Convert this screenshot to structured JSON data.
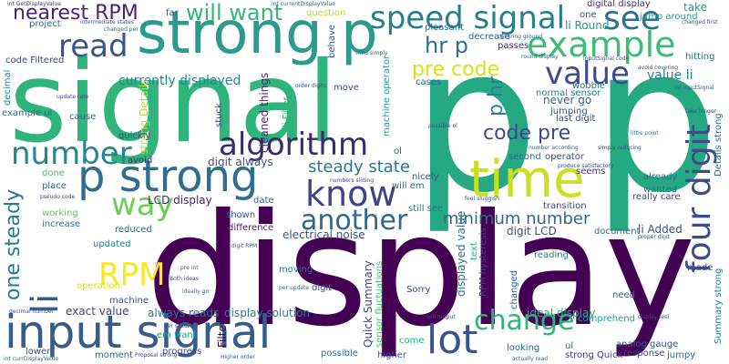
{
  "palette": {
    "dark_purple": "#440154",
    "indigo": "#46327e",
    "blue": "#365c8d",
    "teal_blue": "#277f8e",
    "teal": "#1fa187",
    "green": "#4ac16d",
    "light_green": "#a0da39",
    "yellow": "#d8e219",
    "bright_yellow": "#fde725"
  },
  "words": [
    {
      "text": "display",
      "color": "#440154"
    },
    {
      "text": "signal",
      "color": "#2fb47c"
    },
    {
      "text": "p p",
      "color": "#25a982"
    },
    {
      "text": "strong p",
      "color": "#2d9b8a"
    },
    {
      "text": "time",
      "color": "#c8e020"
    },
    {
      "text": "input signal",
      "color": "#365c8d"
    },
    {
      "text": "p strong",
      "color": "#2e6e8e"
    },
    {
      "text": "algorithm",
      "color": "#3b2a6e"
    },
    {
      "text": "example",
      "color": "#3dbc74"
    },
    {
      "text": "speed signal",
      "color": "#277f8e"
    },
    {
      "text": "see",
      "color": "#2e6e8e"
    },
    {
      "text": "read",
      "color": "#3b528b"
    },
    {
      "text": "know",
      "color": "#404387"
    },
    {
      "text": "another",
      "color": "#30688e"
    },
    {
      "text": "number",
      "color": "#24868e"
    },
    {
      "text": "way",
      "color": "#6ccd5a"
    },
    {
      "text": "value",
      "color": "#3e4a89"
    },
    {
      "text": "change",
      "color": "#2fb47c"
    },
    {
      "text": "RPM",
      "color": "#365c8d"
    },
    {
      "text": "lot",
      "color": "#fde725"
    },
    {
      "text": "li",
      "color": "#3b528b"
    },
    {
      "text": "four digit",
      "color": "#3e4a89"
    },
    {
      "text": "one steady",
      "color": "#2a788e"
    },
    {
      "text": "nearest RPM",
      "color": "#482475"
    },
    {
      "text": "will want",
      "color": "#35b779"
    },
    {
      "text": "pre code",
      "color": "#d8e219"
    },
    {
      "text": "code pre",
      "color": "#3e4989"
    },
    {
      "text": "hr p",
      "color": "#2e6e8e"
    },
    {
      "text": "p hr",
      "color": "#25858e"
    },
    {
      "text": "steady state",
      "color": "#2a788e"
    },
    {
      "text": "minimum number",
      "color": "#31688e"
    },
    {
      "text": "currently displayed",
      "color": "#228c8d"
    },
    {
      "text": "digital display",
      "color": "#46327e"
    },
    {
      "text": "take",
      "color": "#1f9e89"
    },
    {
      "text": "li Round",
      "color": "#1f9e89"
    },
    {
      "text": "value li",
      "color": "#277f8e"
    },
    {
      "text": "digit always",
      "color": "#3b528b"
    },
    {
      "text": "LCD display",
      "color": "#482475"
    },
    {
      "text": "Filtered Signal",
      "color": "#440154"
    },
    {
      "text": "Quick Summary",
      "color": "#3e4a89"
    },
    {
      "text": "displayed value",
      "color": "#2c728e"
    },
    {
      "text": "RPM hysteresis",
      "color": "#443a83"
    },
    {
      "text": "ideal display",
      "color": "#27ad81"
    },
    {
      "text": "analog gauge",
      "color": "#3b528b"
    },
    {
      "text": "exact value",
      "color": "#414487"
    },
    {
      "text": "always reads",
      "color": "#2c728e"
    },
    {
      "text": "display solution",
      "color": "#27808e"
    },
    {
      "text": "electrical noise",
      "color": "#3b528b"
    },
    {
      "text": "Details strong",
      "color": "#2f6c8e"
    },
    {
      "text": "Summary strong",
      "color": "#25838e"
    },
    {
      "text": "strong Details",
      "color": "#c2df23"
    },
    {
      "text": "cleaned things",
      "color": "#482878"
    },
    {
      "text": "li Filter",
      "color": "#2fb47c"
    },
    {
      "text": "machine operator",
      "color": "#1fa088"
    },
    {
      "text": "sensor fluctuations",
      "color": "#4ac16d"
    },
    {
      "text": "digit LCD",
      "color": "#3b528b"
    },
    {
      "text": "li Added",
      "color": "#3e4a89"
    },
    {
      "text": "jump around",
      "color": "#1fa188"
    },
    {
      "text": "pleasant",
      "color": "#31688e"
    },
    {
      "text": "decrease",
      "color": "#31688e"
    },
    {
      "text": "passes",
      "color": "#46327e"
    },
    {
      "text": "behave",
      "color": "#38588c"
    },
    {
      "text": "question",
      "color": "#b5de2b"
    },
    {
      "text": "project",
      "color": "#2e6e8e"
    },
    {
      "text": "code Filtered",
      "color": "#414487"
    },
    {
      "text": "decimal",
      "color": "#24868e"
    },
    {
      "text": "example ul",
      "color": "#2d708e"
    },
    {
      "text": "cause",
      "color": "#31688e"
    },
    {
      "text": "quickly",
      "color": "#3e4a89"
    },
    {
      "text": "avoid",
      "color": "#482475"
    },
    {
      "text": "done",
      "color": "#4ac16d"
    },
    {
      "text": "place",
      "color": "#32648e"
    },
    {
      "text": "working",
      "color": "#5ec962"
    },
    {
      "text": "increase",
      "color": "#2c728e"
    },
    {
      "text": "reduced",
      "color": "#31688e"
    },
    {
      "text": "updated",
      "color": "#25838e"
    },
    {
      "text": "operation",
      "color": "#d8e219"
    },
    {
      "text": "machine",
      "color": "#3b528b"
    },
    {
      "text": "progress",
      "color": "#3e4a89"
    },
    {
      "text": "moment",
      "color": "#31688e"
    },
    {
      "text": "lower",
      "color": "#3b528b"
    },
    {
      "text": "em want",
      "color": "#1fa088"
    },
    {
      "text": "possible",
      "color": "#2c728e"
    },
    {
      "text": "higher",
      "color": "#3b528b"
    },
    {
      "text": "come",
      "color": "#22a884"
    },
    {
      "text": "looking",
      "color": "#31688e"
    },
    {
      "text": "ul",
      "color": "#2c728e"
    },
    {
      "text": "strong Quick",
      "color": "#453781"
    },
    {
      "text": "response",
      "color": "#404387"
    },
    {
      "text": "jumpy",
      "color": "#31688e"
    },
    {
      "text": "comprehend",
      "color": "#1fa088"
    },
    {
      "text": "need",
      "color": "#32648e"
    },
    {
      "text": "made",
      "color": "#3e4a89"
    },
    {
      "text": "reading",
      "color": "#2a788e"
    },
    {
      "text": "document",
      "color": "#2c728e"
    },
    {
      "text": "transition",
      "color": "#414487"
    },
    {
      "text": "wanted",
      "color": "#2c728e"
    },
    {
      "text": "really care",
      "color": "#414487"
    },
    {
      "text": "already",
      "color": "#2c728e"
    },
    {
      "text": "seems",
      "color": "#46327e"
    },
    {
      "text": "operator",
      "color": "#3b528b"
    },
    {
      "text": "second",
      "color": "#31688e"
    },
    {
      "text": "nicely",
      "color": "#3b528b"
    },
    {
      "text": "will em",
      "color": "#32648e"
    },
    {
      "text": "still see",
      "color": "#2a788e"
    },
    {
      "text": "Sorry",
      "color": "#3b528b"
    },
    {
      "text": "text",
      "color": "#2fb47c"
    },
    {
      "text": "changed",
      "color": "#31688e"
    },
    {
      "text": "digit",
      "color": "#3e4a89"
    },
    {
      "text": "moving",
      "color": "#2c728e"
    },
    {
      "text": "difference",
      "color": "#482475"
    },
    {
      "text": "shown",
      "color": "#3b528b"
    },
    {
      "text": "date",
      "color": "#31688e"
    },
    {
      "text": "stuck",
      "color": "#3b528b"
    },
    {
      "text": "move",
      "color": "#3e4a89"
    },
    {
      "text": "ol",
      "color": "#32648e"
    },
    {
      "text": "last digit",
      "color": "#3e4a89"
    },
    {
      "text": "never go",
      "color": "#31688e"
    },
    {
      "text": "jumping",
      "color": "#3b528b"
    },
    {
      "text": "wobble",
      "color": "#2c728e"
    },
    {
      "text": "normal sensor",
      "color": "#2a788e"
    },
    {
      "text": "hitting",
      "color": "#31688e"
    },
    {
      "text": "cases",
      "color": "#31688e"
    },
    {
      "text": "one",
      "color": "#3b528b"
    },
    {
      "text": "far",
      "color": "#3e4a89"
    },
    {
      "text": "Proposal strong",
      "color": "#3b528b"
    },
    {
      "text": "int GetDisplayValue",
      "color": "#414487"
    },
    {
      "text": "int currentDisplayValue",
      "color": "#31688e"
    },
    {
      "text": "intermediate states",
      "color": "#3b528b"
    },
    {
      "text": "changed per",
      "color": "#2c728e"
    },
    {
      "text": "covering ground",
      "color": "#31688e"
    },
    {
      "text": "changed first",
      "color": "#3b528b"
    },
    {
      "text": "avoid covering",
      "color": "#3b528b"
    },
    {
      "text": "int inputSignal",
      "color": "#31688e"
    },
    {
      "text": "update rate",
      "color": "#3e4a89"
    },
    {
      "text": "inputSignal code",
      "color": "#3b528b"
    },
    {
      "text": "tried simply",
      "color": "#2c728e"
    },
    {
      "text": "order digits",
      "color": "#3b528b"
    },
    {
      "text": "number according",
      "color": "#31688e"
    },
    {
      "text": "simply reducing",
      "color": "#3b528b"
    },
    {
      "text": "produce satisfactory",
      "color": "#3e4a89"
    },
    {
      "text": "feel sluggish",
      "color": "#3b528b"
    },
    {
      "text": "little point",
      "color": "#2a788e"
    },
    {
      "text": "take longer",
      "color": "#3b528b"
    },
    {
      "text": "Higher order",
      "color": "#31688e"
    },
    {
      "text": "per second",
      "color": "#3b528b"
    },
    {
      "text": "will output",
      "color": "#3e4a89"
    },
    {
      "text": "actually read",
      "color": "#31688e"
    },
    {
      "text": "display feel",
      "color": "#3b528b"
    },
    {
      "text": "proper digit",
      "color": "#3b528b"
    },
    {
      "text": "digit RPM",
      "color": "#3b528b"
    },
    {
      "text": "pseudo code",
      "color": "#3e4a89"
    },
    {
      "text": "per update",
      "color": "#31688e"
    },
    {
      "text": "decimal number",
      "color": "#3b528b"
    },
    {
      "text": "int currDisplayValue",
      "color": "#31688e"
    },
    {
      "text": "pre int",
      "color": "#3b528b"
    },
    {
      "text": "possible ol",
      "color": "#3e4a89"
    },
    {
      "text": "ideally go",
      "color": "#31688e"
    },
    {
      "text": "Both ideas",
      "color": "#3b528b"
    },
    {
      "text": "numbers sliding",
      "color": "#3e4a89"
    },
    {
      "text": "round display",
      "color": "#31688e"
    }
  ]
}
